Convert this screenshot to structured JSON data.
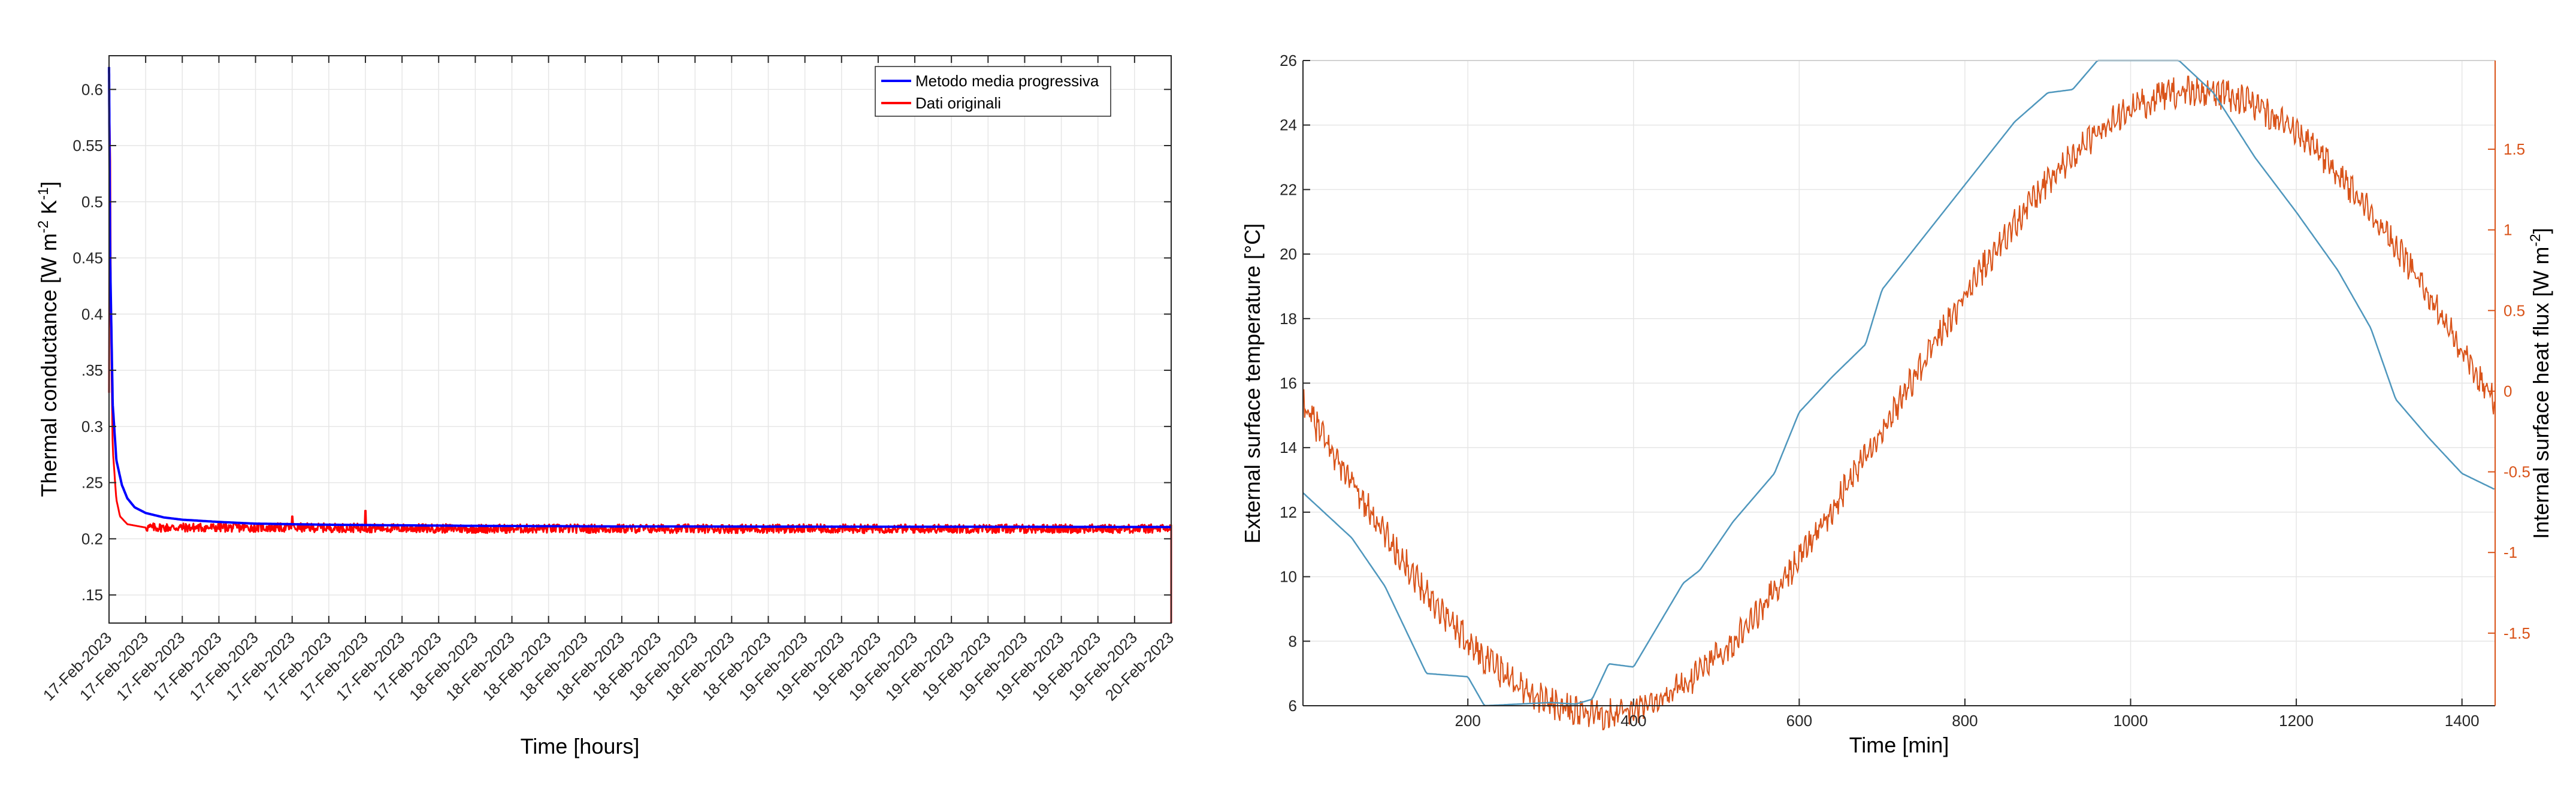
{
  "chart_data": [
    {
      "type": "line",
      "xlabel": "Time [hours]",
      "ylabel": "Thermal conductance  [W m^-2 K^-1]",
      "ylabel_parts": [
        "Thermal conductance  [W m",
        "-2",
        " K",
        "-1",
        "]"
      ],
      "ylim": [
        0.125,
        0.63
      ],
      "y_ticks": [
        0.15,
        0.2,
        0.25,
        0.3,
        0.35,
        0.4,
        0.45,
        0.5,
        0.55,
        0.6
      ],
      "y_tick_labels": [
        ".15",
        "0.2",
        ".25",
        "0.3",
        ".35",
        "0.4",
        "0.45",
        "0.5",
        "0.55",
        "0.6"
      ],
      "x_tick_labels": [
        "17-Feb-2023",
        "17-Feb-2023",
        "17-Feb-2023",
        "17-Feb-2023",
        "17-Feb-2023",
        "17-Feb-2023",
        "17-Feb-2023",
        "17-Feb-2023",
        "17-Feb-2023",
        "17-Feb-2023",
        "18-Feb-2023",
        "18-Feb-2023",
        "18-Feb-2023",
        "18-Feb-2023",
        "18-Feb-2023",
        "18-Feb-2023",
        "18-Feb-2023",
        "18-Feb-2023",
        "18-Feb-2023",
        "19-Feb-2023",
        "19-Feb-2023",
        "19-Feb-2023",
        "19-Feb-2023",
        "19-Feb-2023",
        "19-Feb-2023",
        "19-Feb-2023",
        "19-Feb-2023",
        "19-Feb-2023",
        "19-Feb-2023",
        "20-Feb-2023"
      ],
      "grid": true,
      "legend_position": "top-right",
      "series": [
        {
          "name": "Metodo media progressiva",
          "color": "#0000ff",
          "x": [
            0,
            0.03,
            0.1,
            0.2,
            0.35,
            0.5,
            0.7,
            1,
            1.5,
            2,
            3,
            4,
            6,
            8,
            10,
            14,
            20,
            29
          ],
          "y": [
            0.62,
            0.45,
            0.32,
            0.27,
            0.248,
            0.236,
            0.228,
            0.223,
            0.219,
            0.217,
            0.215,
            0.2135,
            0.2125,
            0.212,
            0.2115,
            0.211,
            0.2108,
            0.2105
          ]
        },
        {
          "name": "Dati originali",
          "color": "#ff0000",
          "baseline": 0.209,
          "noise_amplitude": 0.004,
          "x": [
            0,
            0.02,
            0.05,
            0.1,
            0.2,
            0.3,
            0.5,
            1,
            5,
            10,
            29,
            29.03
          ],
          "y": [
            0.33,
            0.63,
            0.4,
            0.28,
            0.235,
            0.22,
            0.213,
            0.21,
            0.21,
            0.209,
            0.209,
            0.125
          ],
          "spikes": [
            [
              5.0,
              0.22
            ],
            [
              7.0,
              0.225
            ]
          ]
        }
      ]
    },
    {
      "type": "line",
      "xlabel": "Time [min]",
      "ylabel_left": "External surface temperature [°C]",
      "ylabel_right_parts": [
        "Internal surface heat flux [W m",
        "-2",
        "]"
      ],
      "xlim": [
        1,
        1440
      ],
      "x_ticks": [
        200,
        400,
        600,
        800,
        1000,
        1200,
        1400
      ],
      "x_tick_labels": [
        "200",
        "400",
        "600",
        "800",
        "1000",
        "1200",
        "1400"
      ],
      "ylim_left": [
        6,
        26
      ],
      "y_left_ticks": [
        6,
        8,
        10,
        12,
        14,
        16,
        18,
        20,
        22,
        24,
        26
      ],
      "y_left_tick_labels": [
        "6",
        "8",
        "10",
        "12",
        "14",
        "16",
        "18",
        "20",
        "22",
        "24",
        "26"
      ],
      "ylim_right": [
        -1.95,
        2.05
      ],
      "y_right_ticks": [
        -1.5,
        -1,
        -0.5,
        0,
        0.5,
        1,
        1.5
      ],
      "y_right_tick_labels": [
        "-1.5",
        "-1",
        "-0.5",
        "0",
        "0.5",
        "1",
        "1.5"
      ],
      "grid": true,
      "series": [
        {
          "axis": "left",
          "color": "#4f97bd",
          "x": [
            1,
            60,
            100,
            150,
            200,
            220,
            300,
            330,
            350,
            370,
            400,
            460,
            480,
            520,
            570,
            600,
            640,
            680,
            700,
            740,
            780,
            820,
            860,
            900,
            930,
            960,
            1000,
            1050,
            1100,
            1150,
            1200,
            1250,
            1290,
            1320,
            1360,
            1400,
            1440
          ],
          "y": [
            12.6,
            11.2,
            9.7,
            7.0,
            6.9,
            6.0,
            6.1,
            6.05,
            6.2,
            7.3,
            7.2,
            9.8,
            10.2,
            11.7,
            13.2,
            15.1,
            16.2,
            17.2,
            18.9,
            20.2,
            21.5,
            22.8,
            24.1,
            25.0,
            25.1,
            26.0,
            26.1,
            26.2,
            25.0,
            23.0,
            21.3,
            19.5,
            17.7,
            15.5,
            14.3,
            13.2,
            12.7
          ]
        },
        {
          "axis": "right",
          "color": "#d95319",
          "phase_min": 1080,
          "period_min": 1440,
          "mean": -0.07,
          "amplitude": 1.93,
          "noise_amplitude": 0.06
        }
      ]
    }
  ]
}
